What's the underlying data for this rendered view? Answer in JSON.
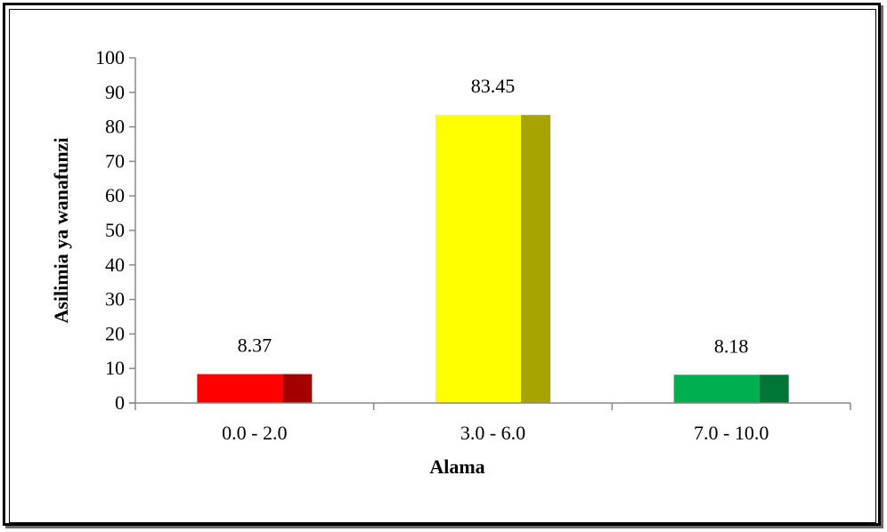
{
  "chart_data": {
    "type": "bar",
    "title": "",
    "xlabel": "Alama",
    "ylabel": "Asilimia ya wanafunzi",
    "categories": [
      "0.0 - 2.0",
      "3.0 - 6.0",
      "7.0 - 10.0"
    ],
    "values": [
      8.37,
      83.45,
      8.18
    ],
    "data_labels": [
      "8.37",
      "83.45",
      "8.18"
    ],
    "ylim": [
      0,
      100
    ],
    "yticks": [
      "0",
      "10",
      "20",
      "30",
      "40",
      "50",
      "60",
      "70",
      "80",
      "90",
      "100"
    ],
    "colors": [
      {
        "front": "#ff0000",
        "side": "#a50000"
      },
      {
        "front": "#ffff00",
        "side": "#a7a300"
      },
      {
        "front": "#00b050",
        "side": "#007535"
      }
    ],
    "grid": false,
    "legend": "none",
    "bar_style": "3d-side-shaded"
  }
}
